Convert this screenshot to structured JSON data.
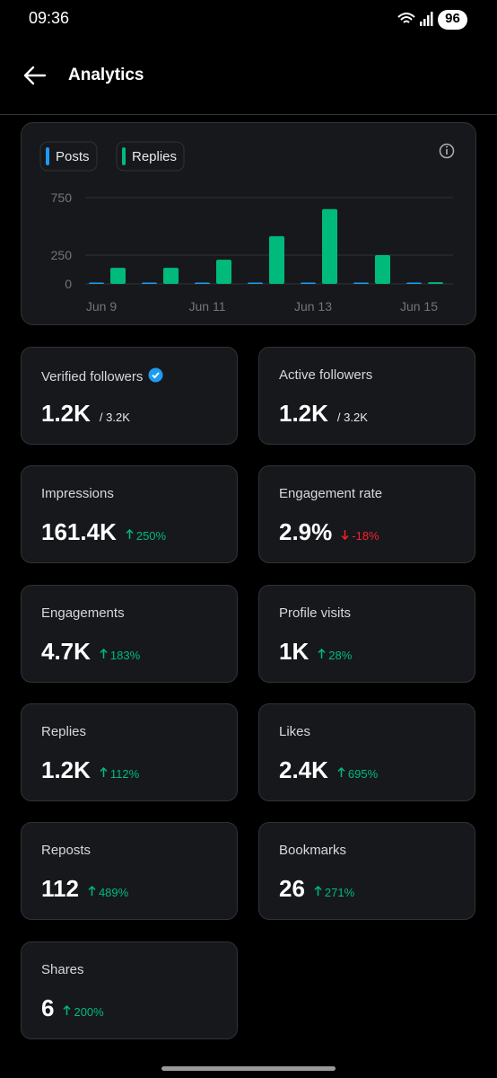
{
  "status_bar": {
    "time": "09:36",
    "battery": "96"
  },
  "header": {
    "title": "Analytics"
  },
  "chart_data": {
    "type": "bar",
    "categories": [
      "Jun 9",
      null,
      "Jun 11",
      null,
      "Jun 13",
      null,
      "Jun 15"
    ],
    "series": [
      {
        "name": "Posts",
        "color": "#1d9bf0",
        "values": [
          4,
          4,
          8,
          4,
          8,
          6,
          2
        ]
      },
      {
        "name": "Replies",
        "color": "#00ba7c",
        "values": [
          140,
          140,
          210,
          415,
          650,
          250,
          15
        ]
      }
    ],
    "ylim": [
      0,
      750
    ],
    "yticks": [
      0,
      250,
      750
    ],
    "grid": true
  },
  "cards": [
    {
      "label": "Verified followers",
      "verified": true,
      "value": "1.2K",
      "total": "/ 3.2K"
    },
    {
      "label": "Active followers",
      "value": "1.2K",
      "total": "/ 3.2K"
    },
    {
      "label": "Impressions",
      "value": "161.4K",
      "change": "250%",
      "trend": "up"
    },
    {
      "label": "Engagement rate",
      "value": "2.9%",
      "change": "-18%",
      "trend": "down"
    },
    {
      "label": "Engagements",
      "value": "4.7K",
      "change": "183%",
      "trend": "up"
    },
    {
      "label": "Profile visits",
      "value": "1K",
      "change": "28%",
      "trend": "up"
    },
    {
      "label": "Replies",
      "value": "1.2K",
      "change": "112%",
      "trend": "up"
    },
    {
      "label": "Likes",
      "value": "2.4K",
      "change": "695%",
      "trend": "up"
    },
    {
      "label": "Reposts",
      "value": "112",
      "change": "489%",
      "trend": "up"
    },
    {
      "label": "Bookmarks",
      "value": "26",
      "change": "271%",
      "trend": "up"
    },
    {
      "label": "Shares",
      "value": "6",
      "change": "200%",
      "trend": "up"
    }
  ]
}
